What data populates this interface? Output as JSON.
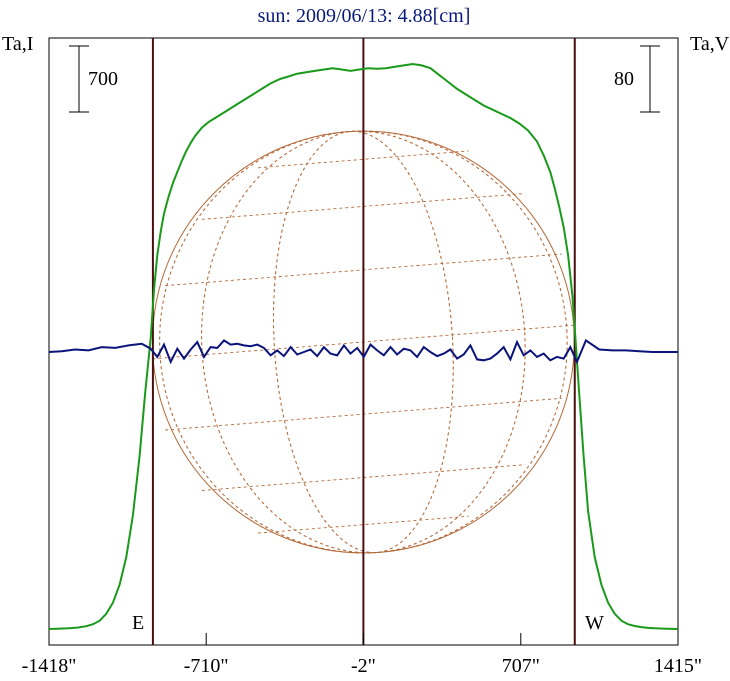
{
  "title": "sun: 2009/06/13: 4.88[cm]",
  "labels": {
    "left_axis": "Ta,I",
    "right_axis": "Ta,V",
    "left_scale": "700",
    "right_scale": "80",
    "east": "E",
    "west": "W"
  },
  "chart_data": {
    "type": "line",
    "title": "sun: 2009/06/13: 4.88[cm]",
    "xlabel": "",
    "x_ticks": [
      "-1418\"",
      "-710\"",
      "-2\"",
      "707\"",
      "1415\""
    ],
    "x_tick_values": [
      -1418,
      -710,
      -2,
      707,
      1415
    ],
    "xlim": [
      -1418,
      1415
    ],
    "solar_limb_x": [
      -950,
      950
    ],
    "center_x": -2,
    "left_scale_bar": 700,
    "right_scale_bar": 80,
    "grid": false,
    "series": [
      {
        "name": "Ta,I",
        "axis": "left",
        "color": "#1a9a1a",
        "x": [
          -1418,
          -1380,
          -1330,
          -1290,
          -1250,
          -1220,
          -1190,
          -1160,
          -1130,
          -1100,
          -1070,
          -1040,
          -1010,
          -985,
          -960,
          -945,
          -930,
          -915,
          -900,
          -880,
          -860,
          -840,
          -820,
          -800,
          -780,
          -760,
          -730,
          -700,
          -660,
          -620,
          -580,
          -540,
          -500,
          -460,
          -420,
          -380,
          -340,
          -300,
          -260,
          -220,
          -180,
          -140,
          -100,
          -60,
          -20,
          20,
          60,
          100,
          140,
          180,
          220,
          260,
          300,
          340,
          380,
          420,
          460,
          500,
          540,
          580,
          620,
          660,
          700,
          740,
          780,
          810,
          840,
          860,
          880,
          900,
          920,
          940,
          955,
          970,
          990,
          1010,
          1040,
          1070,
          1100,
          1130,
          1160,
          1190,
          1220,
          1250,
          1280,
          1310,
          1350,
          1390,
          1415
        ],
        "y": [
          0,
          2,
          5,
          10,
          20,
          35,
          60,
          110,
          190,
          320,
          520,
          820,
          1250,
          1700,
          2100,
          2450,
          2700,
          2870,
          3000,
          3120,
          3220,
          3300,
          3380,
          3450,
          3510,
          3560,
          3620,
          3660,
          3700,
          3740,
          3780,
          3820,
          3860,
          3900,
          3940,
          3970,
          3990,
          4010,
          4020,
          4030,
          4040,
          4050,
          4040,
          4030,
          4040,
          4050,
          4045,
          4050,
          4060,
          4070,
          4080,
          4070,
          4050,
          4000,
          3950,
          3900,
          3860,
          3820,
          3780,
          3750,
          3720,
          3690,
          3650,
          3600,
          3520,
          3420,
          3300,
          3180,
          3050,
          2900,
          2700,
          2400,
          2050,
          1700,
          1250,
          850,
          520,
          320,
          190,
          110,
          60,
          35,
          22,
          14,
          8,
          5,
          3,
          1,
          0
        ]
      },
      {
        "name": "Ta,V",
        "axis": "right",
        "color": "#0a147a",
        "x": [
          -1418,
          -1360,
          -1300,
          -1240,
          -1180,
          -1120,
          -1060,
          -1000,
          -960,
          -930,
          -900,
          -870,
          -840,
          -810,
          -780,
          -750,
          -720,
          -690,
          -660,
          -630,
          -600,
          -570,
          -540,
          -510,
          -480,
          -450,
          -420,
          -390,
          -360,
          -330,
          -300,
          -270,
          -240,
          -210,
          -180,
          -150,
          -120,
          -90,
          -60,
          -30,
          0,
          30,
          60,
          90,
          120,
          150,
          180,
          210,
          240,
          270,
          300,
          330,
          360,
          390,
          420,
          450,
          480,
          510,
          540,
          570,
          600,
          630,
          660,
          690,
          720,
          750,
          780,
          810,
          840,
          870,
          900,
          930,
          960,
          1000,
          1060,
          1120,
          1180,
          1240,
          1300,
          1360,
          1415
        ],
        "y": [
          0,
          1,
          3,
          2,
          6,
          5,
          8,
          10,
          4,
          -6,
          9,
          -12,
          4,
          -8,
          3,
          12,
          -6,
          6,
          5,
          14,
          9,
          10,
          8,
          7,
          9,
          5,
          -4,
          2,
          -5,
          6,
          -3,
          0,
          3,
          -5,
          6,
          -2,
          -4,
          8,
          -2,
          5,
          -6,
          9,
          2,
          -4,
          6,
          -3,
          4,
          2,
          -6,
          6,
          0,
          -5,
          -2,
          3,
          -8,
          -3,
          8,
          -9,
          -10,
          -8,
          -2,
          6,
          -9,
          12,
          -4,
          2,
          -6,
          -2,
          -10,
          -6,
          -8,
          6,
          -12,
          14,
          3,
          2,
          2,
          1,
          0,
          0,
          0
        ]
      }
    ]
  }
}
